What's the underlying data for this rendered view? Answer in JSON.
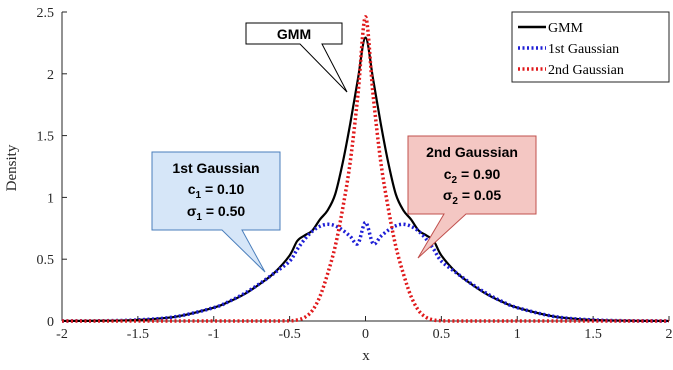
{
  "chart_data": {
    "type": "line",
    "title": "",
    "xlabel": "x",
    "ylabel": "Density",
    "xlim": [
      -2,
      2
    ],
    "ylim": [
      0,
      2.5
    ],
    "xticks": [
      -2,
      -1.5,
      -1,
      -0.5,
      0,
      0.5,
      1,
      1.5,
      2
    ],
    "yticks": [
      0,
      0.5,
      1,
      1.5,
      2,
      2.5
    ],
    "xtick_labels": [
      "-2",
      "-1.5",
      "-1",
      "-0.5",
      "0",
      "0.5",
      "1",
      "1.5",
      "2"
    ],
    "ytick_labels": [
      "0",
      "0.5",
      "1",
      "1.5",
      "2",
      "2.5"
    ],
    "grid": false,
    "legend_position": "top-right",
    "x": [
      -2,
      -1.75,
      -1.5,
      -1.25,
      -1,
      -0.9,
      -0.8,
      -0.7,
      -0.6,
      -0.5,
      -0.45,
      -0.4,
      -0.35,
      -0.3,
      -0.25,
      -0.2,
      -0.15,
      -0.1,
      -0.05,
      0,
      0.05,
      0.1,
      0.15,
      0.2,
      0.25,
      0.3,
      0.35,
      0.4,
      0.45,
      0.5,
      0.6,
      0.7,
      0.8,
      0.9,
      1,
      1.25,
      1.5,
      1.75,
      2
    ],
    "series": [
      {
        "name": "GMM",
        "color": "#000000",
        "style": "solid",
        "values": [
          0.0003,
          0.0018,
          0.0089,
          0.0351,
          0.108,
          0.1555,
          0.2157,
          0.2963,
          0.3912,
          0.5302,
          0.6474,
          0.6932,
          0.7326,
          0.8218,
          0.8949,
          1.0245,
          1.2813,
          1.6005,
          1.9574,
          2.2928,
          1.9574,
          1.6005,
          1.2813,
          1.0245,
          0.8949,
          0.8218,
          0.7326,
          0.6932,
          0.6474,
          0.5302,
          0.3912,
          0.2963,
          0.2157,
          0.1555,
          0.108,
          0.0351,
          0.0089,
          0.0018,
          0.0003
        ]
      },
      {
        "name": "1st Gaussian",
        "color": "#1f1fd6",
        "style": "dotted",
        "values": [
          0.0003,
          0.0018,
          0.0089,
          0.0351,
          0.108,
          0.1579,
          0.2218,
          0.2995,
          0.3884,
          0.484,
          0.5794,
          0.6627,
          0.7264,
          0.7662,
          0.7825,
          0.7704,
          0.7345,
          0.6838,
          0.6261,
          0.7979,
          0.6261,
          0.6838,
          0.7345,
          0.7704,
          0.7825,
          0.7662,
          0.7264,
          0.6627,
          0.5794,
          0.484,
          0.3884,
          0.2995,
          0.2218,
          0.1579,
          0.108,
          0.0351,
          0.0089,
          0.0018,
          0.0003
        ]
      },
      {
        "name": "2nd Gaussian",
        "color": "#e0191b",
        "style": "dotted",
        "values": [
          0,
          0,
          0,
          0,
          0,
          0,
          0,
          0,
          0.0002,
          0.0017,
          0.0082,
          0.0296,
          0.085,
          0.1993,
          0.3806,
          0.6022,
          0.9124,
          1.2926,
          1.8283,
          2.4607,
          1.8283,
          1.2926,
          0.9124,
          0.6022,
          0.3806,
          0.1993,
          0.085,
          0.0296,
          0.0082,
          0.0017,
          0.0002,
          0,
          0,
          0,
          0,
          0,
          0,
          0,
          0
        ]
      }
    ],
    "annotations": [
      {
        "lines": [
          "GMM"
        ],
        "box_color": "#ffffff",
        "border_color": "#000000"
      },
      {
        "lines": [
          "1st Gaussian",
          "c",
          "1",
          " = 0.10",
          "σ",
          "1",
          " = 0.50"
        ],
        "box_color": "#d6e6f8",
        "border_color": "#4a7ebb"
      },
      {
        "lines": [
          "2nd Gaussian",
          "c",
          "2",
          " = 0.90",
          "σ",
          "2",
          " = 0.05"
        ],
        "box_color": "#f4c7c3",
        "border_color": "#c0504d"
      }
    ]
  }
}
